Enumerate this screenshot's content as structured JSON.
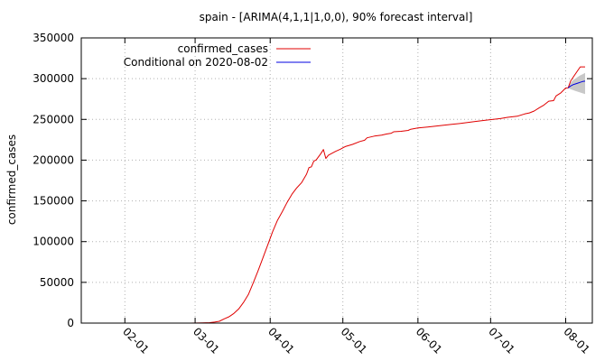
{
  "chart_data": {
    "type": "line",
    "title": "spain -  [ARIMA(4,1,1|1,0,0), 90% forecast interval]",
    "ylabel": "confirmed_cases",
    "xlabel": "",
    "ylim": [
      0,
      350000
    ],
    "xlim": [
      "2020-01-14",
      "2020-08-12"
    ],
    "y_ticks": [
      0,
      50000,
      100000,
      150000,
      200000,
      250000,
      300000,
      350000
    ],
    "x_ticks": [
      {
        "date": "2020-02-01",
        "label": "02-01"
      },
      {
        "date": "2020-03-01",
        "label": "03-01"
      },
      {
        "date": "2020-04-01",
        "label": "04-01"
      },
      {
        "date": "2020-05-01",
        "label": "05-01"
      },
      {
        "date": "2020-06-01",
        "label": "06-01"
      },
      {
        "date": "2020-07-01",
        "label": "07-01"
      },
      {
        "date": "2020-08-01",
        "label": "08-01"
      }
    ],
    "grid": true,
    "legend_position": "top-left",
    "series": [
      {
        "name": "confirmed_cases",
        "color": "#e00000",
        "points": [
          [
            "2020-02-28",
            30
          ],
          [
            "2020-03-04",
            200
          ],
          [
            "2020-03-07",
            500
          ],
          [
            "2020-03-09",
            1200
          ],
          [
            "2020-03-11",
            2200
          ],
          [
            "2020-03-13",
            5200
          ],
          [
            "2020-03-15",
            7800
          ],
          [
            "2020-03-17",
            11800
          ],
          [
            "2020-03-19",
            17400
          ],
          [
            "2020-03-21",
            25400
          ],
          [
            "2020-03-23",
            35100
          ],
          [
            "2020-03-25",
            49500
          ],
          [
            "2020-03-27",
            64100
          ],
          [
            "2020-03-29",
            80100
          ],
          [
            "2020-03-31",
            95900
          ],
          [
            "2020-04-02",
            112100
          ],
          [
            "2020-04-04",
            126200
          ],
          [
            "2020-04-06",
            136700
          ],
          [
            "2020-04-08",
            148200
          ],
          [
            "2020-04-10",
            158300
          ],
          [
            "2020-04-12",
            166000
          ],
          [
            "2020-04-14",
            172500
          ],
          [
            "2020-04-16",
            182800
          ],
          [
            "2020-04-17",
            190800
          ],
          [
            "2020-04-18",
            191700
          ],
          [
            "2020-04-19",
            198700
          ],
          [
            "2020-04-20",
            200200
          ],
          [
            "2020-04-22",
            208400
          ],
          [
            "2020-04-23",
            213000
          ],
          [
            "2020-04-24",
            202000
          ],
          [
            "2020-04-25",
            205900
          ],
          [
            "2020-04-26",
            207600
          ],
          [
            "2020-04-28",
            210800
          ],
          [
            "2020-04-30",
            213400
          ],
          [
            "2020-05-02",
            216600
          ],
          [
            "2020-05-05",
            219300
          ],
          [
            "2020-05-08",
            222800
          ],
          [
            "2020-05-10",
            224400
          ],
          [
            "2020-05-11",
            227400
          ],
          [
            "2020-05-14",
            229500
          ],
          [
            "2020-05-17",
            230700
          ],
          [
            "2020-05-19",
            232000
          ],
          [
            "2020-05-21",
            233000
          ],
          [
            "2020-05-22",
            234800
          ],
          [
            "2020-05-25",
            235400
          ],
          [
            "2020-05-28",
            236500
          ],
          [
            "2020-05-29",
            237900
          ],
          [
            "2020-06-01",
            239600
          ],
          [
            "2020-06-05",
            240700
          ],
          [
            "2020-06-10",
            242300
          ],
          [
            "2020-06-15",
            243900
          ],
          [
            "2020-06-20",
            245600
          ],
          [
            "2020-06-25",
            247500
          ],
          [
            "2020-06-30",
            249300
          ],
          [
            "2020-07-05",
            251000
          ],
          [
            "2020-07-08",
            252500
          ],
          [
            "2020-07-12",
            253900
          ],
          [
            "2020-07-15",
            256600
          ],
          [
            "2020-07-17",
            258000
          ],
          [
            "2020-07-19",
            260300
          ],
          [
            "2020-07-21",
            264100
          ],
          [
            "2020-07-23",
            267600
          ],
          [
            "2020-07-25",
            272400
          ],
          [
            "2020-07-27",
            273000
          ],
          [
            "2020-07-28",
            278800
          ],
          [
            "2020-07-30",
            282600
          ],
          [
            "2020-08-01",
            288500
          ],
          [
            "2020-08-02",
            288600
          ],
          [
            "2020-08-03",
            297000
          ],
          [
            "2020-08-05",
            305700
          ],
          [
            "2020-08-07",
            314400
          ],
          [
            "2020-08-09",
            314400
          ]
        ]
      },
      {
        "name": "Conditional on 2020-08-02",
        "color": "#0000e0",
        "points": [
          [
            "2020-08-02",
            288600
          ],
          [
            "2020-08-03",
            291000
          ],
          [
            "2020-08-04",
            292500
          ],
          [
            "2020-08-05",
            293500
          ],
          [
            "2020-08-06",
            294500
          ],
          [
            "2020-08-07",
            295500
          ],
          [
            "2020-08-08",
            296500
          ],
          [
            "2020-08-09",
            297000
          ]
        ],
        "interval": {
          "color": "#c8c8c8",
          "points": [
            [
              "2020-08-02",
              288600,
              288600
            ],
            [
              "2020-08-03",
              287000,
              295000
            ],
            [
              "2020-08-04",
              286000,
              298000
            ],
            [
              "2020-08-05",
              285000,
              300000
            ],
            [
              "2020-08-06",
              284000,
              302000
            ],
            [
              "2020-08-07",
              283000,
              304000
            ],
            [
              "2020-08-08",
              282000,
              305500
            ],
            [
              "2020-08-09",
              281000,
              307000
            ]
          ]
        }
      }
    ]
  }
}
